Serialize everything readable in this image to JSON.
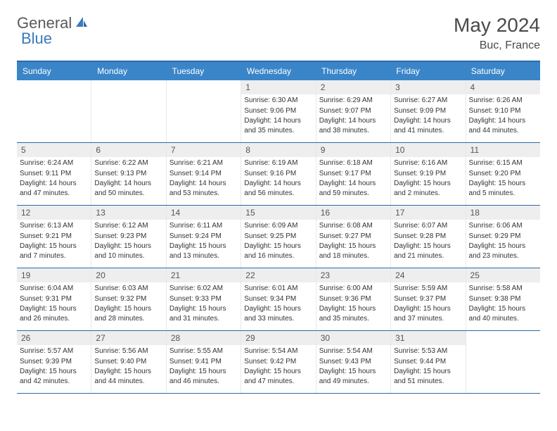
{
  "logo": {
    "text1": "General",
    "text2": "Blue"
  },
  "title": "May 2024",
  "location": "Buc, France",
  "colors": {
    "header_bg": "#3a85c8",
    "header_text": "#ffffff",
    "border": "#2a6aa8",
    "daynum_bg": "#eeeeee",
    "text": "#333333",
    "logo_gray": "#5a5a5a",
    "logo_blue": "#3a7ab8"
  },
  "weekdays": [
    "Sunday",
    "Monday",
    "Tuesday",
    "Wednesday",
    "Thursday",
    "Friday",
    "Saturday"
  ],
  "weeks": [
    [
      {
        "n": "",
        "sr": "",
        "ss": "",
        "dl": ""
      },
      {
        "n": "",
        "sr": "",
        "ss": "",
        "dl": ""
      },
      {
        "n": "",
        "sr": "",
        "ss": "",
        "dl": ""
      },
      {
        "n": "1",
        "sr": "Sunrise: 6:30 AM",
        "ss": "Sunset: 9:06 PM",
        "dl": "Daylight: 14 hours and 35 minutes."
      },
      {
        "n": "2",
        "sr": "Sunrise: 6:29 AM",
        "ss": "Sunset: 9:07 PM",
        "dl": "Daylight: 14 hours and 38 minutes."
      },
      {
        "n": "3",
        "sr": "Sunrise: 6:27 AM",
        "ss": "Sunset: 9:09 PM",
        "dl": "Daylight: 14 hours and 41 minutes."
      },
      {
        "n": "4",
        "sr": "Sunrise: 6:26 AM",
        "ss": "Sunset: 9:10 PM",
        "dl": "Daylight: 14 hours and 44 minutes."
      }
    ],
    [
      {
        "n": "5",
        "sr": "Sunrise: 6:24 AM",
        "ss": "Sunset: 9:11 PM",
        "dl": "Daylight: 14 hours and 47 minutes."
      },
      {
        "n": "6",
        "sr": "Sunrise: 6:22 AM",
        "ss": "Sunset: 9:13 PM",
        "dl": "Daylight: 14 hours and 50 minutes."
      },
      {
        "n": "7",
        "sr": "Sunrise: 6:21 AM",
        "ss": "Sunset: 9:14 PM",
        "dl": "Daylight: 14 hours and 53 minutes."
      },
      {
        "n": "8",
        "sr": "Sunrise: 6:19 AM",
        "ss": "Sunset: 9:16 PM",
        "dl": "Daylight: 14 hours and 56 minutes."
      },
      {
        "n": "9",
        "sr": "Sunrise: 6:18 AM",
        "ss": "Sunset: 9:17 PM",
        "dl": "Daylight: 14 hours and 59 minutes."
      },
      {
        "n": "10",
        "sr": "Sunrise: 6:16 AM",
        "ss": "Sunset: 9:19 PM",
        "dl": "Daylight: 15 hours and 2 minutes."
      },
      {
        "n": "11",
        "sr": "Sunrise: 6:15 AM",
        "ss": "Sunset: 9:20 PM",
        "dl": "Daylight: 15 hours and 5 minutes."
      }
    ],
    [
      {
        "n": "12",
        "sr": "Sunrise: 6:13 AM",
        "ss": "Sunset: 9:21 PM",
        "dl": "Daylight: 15 hours and 7 minutes."
      },
      {
        "n": "13",
        "sr": "Sunrise: 6:12 AM",
        "ss": "Sunset: 9:23 PM",
        "dl": "Daylight: 15 hours and 10 minutes."
      },
      {
        "n": "14",
        "sr": "Sunrise: 6:11 AM",
        "ss": "Sunset: 9:24 PM",
        "dl": "Daylight: 15 hours and 13 minutes."
      },
      {
        "n": "15",
        "sr": "Sunrise: 6:09 AM",
        "ss": "Sunset: 9:25 PM",
        "dl": "Daylight: 15 hours and 16 minutes."
      },
      {
        "n": "16",
        "sr": "Sunrise: 6:08 AM",
        "ss": "Sunset: 9:27 PM",
        "dl": "Daylight: 15 hours and 18 minutes."
      },
      {
        "n": "17",
        "sr": "Sunrise: 6:07 AM",
        "ss": "Sunset: 9:28 PM",
        "dl": "Daylight: 15 hours and 21 minutes."
      },
      {
        "n": "18",
        "sr": "Sunrise: 6:06 AM",
        "ss": "Sunset: 9:29 PM",
        "dl": "Daylight: 15 hours and 23 minutes."
      }
    ],
    [
      {
        "n": "19",
        "sr": "Sunrise: 6:04 AM",
        "ss": "Sunset: 9:31 PM",
        "dl": "Daylight: 15 hours and 26 minutes."
      },
      {
        "n": "20",
        "sr": "Sunrise: 6:03 AM",
        "ss": "Sunset: 9:32 PM",
        "dl": "Daylight: 15 hours and 28 minutes."
      },
      {
        "n": "21",
        "sr": "Sunrise: 6:02 AM",
        "ss": "Sunset: 9:33 PM",
        "dl": "Daylight: 15 hours and 31 minutes."
      },
      {
        "n": "22",
        "sr": "Sunrise: 6:01 AM",
        "ss": "Sunset: 9:34 PM",
        "dl": "Daylight: 15 hours and 33 minutes."
      },
      {
        "n": "23",
        "sr": "Sunrise: 6:00 AM",
        "ss": "Sunset: 9:36 PM",
        "dl": "Daylight: 15 hours and 35 minutes."
      },
      {
        "n": "24",
        "sr": "Sunrise: 5:59 AM",
        "ss": "Sunset: 9:37 PM",
        "dl": "Daylight: 15 hours and 37 minutes."
      },
      {
        "n": "25",
        "sr": "Sunrise: 5:58 AM",
        "ss": "Sunset: 9:38 PM",
        "dl": "Daylight: 15 hours and 40 minutes."
      }
    ],
    [
      {
        "n": "26",
        "sr": "Sunrise: 5:57 AM",
        "ss": "Sunset: 9:39 PM",
        "dl": "Daylight: 15 hours and 42 minutes."
      },
      {
        "n": "27",
        "sr": "Sunrise: 5:56 AM",
        "ss": "Sunset: 9:40 PM",
        "dl": "Daylight: 15 hours and 44 minutes."
      },
      {
        "n": "28",
        "sr": "Sunrise: 5:55 AM",
        "ss": "Sunset: 9:41 PM",
        "dl": "Daylight: 15 hours and 46 minutes."
      },
      {
        "n": "29",
        "sr": "Sunrise: 5:54 AM",
        "ss": "Sunset: 9:42 PM",
        "dl": "Daylight: 15 hours and 47 minutes."
      },
      {
        "n": "30",
        "sr": "Sunrise: 5:54 AM",
        "ss": "Sunset: 9:43 PM",
        "dl": "Daylight: 15 hours and 49 minutes."
      },
      {
        "n": "31",
        "sr": "Sunrise: 5:53 AM",
        "ss": "Sunset: 9:44 PM",
        "dl": "Daylight: 15 hours and 51 minutes."
      },
      {
        "n": "",
        "sr": "",
        "ss": "",
        "dl": ""
      }
    ]
  ]
}
